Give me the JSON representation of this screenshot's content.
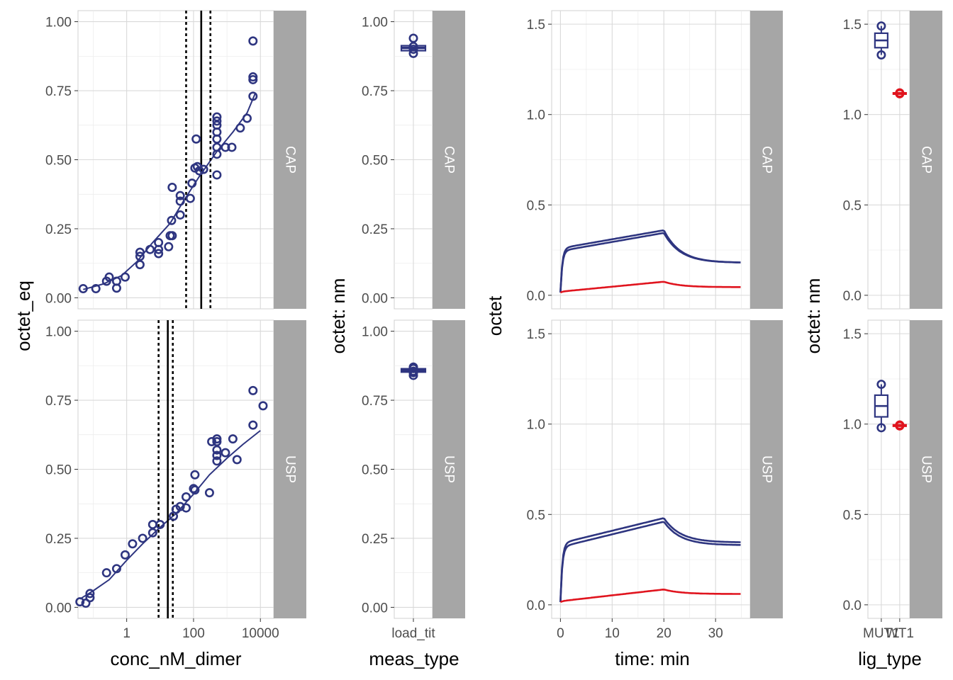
{
  "colors": {
    "series_main": "#2E3580",
    "series_secondary": "#E0141E",
    "strip_bg": "#A6A6A6",
    "grid_major": "#D9D9D9",
    "grid_minor": "#EBEBEB",
    "panel_border": "#D0D0D0",
    "reference_line": "#000000"
  },
  "figure": {
    "facet_rows": [
      "CAP",
      "USP"
    ]
  },
  "chart_data": [
    {
      "id": "titration",
      "type": "scatter",
      "xlabel": "conc_nM_dimer",
      "ylabel": "octet_eq",
      "x_scale": "log10",
      "xlim": [
        0.035,
        25000
      ],
      "ylim": [
        -0.04,
        1.04
      ],
      "x_ticks": [
        1,
        100,
        10000
      ],
      "x_tick_labels": [
        "1",
        "100",
        "10000"
      ],
      "y_ticks": [
        0,
        0.25,
        0.5,
        0.75,
        1
      ],
      "y_tick_labels": [
        "0.00",
        "0.25",
        "0.50",
        "0.75",
        "1.00"
      ],
      "grid": true,
      "facets": [
        {
          "strip": "CAP",
          "points": [
            [
              0.05,
              0.033
            ],
            [
              0.12,
              0.033
            ],
            [
              0.25,
              0.06
            ],
            [
              0.3,
              0.075
            ],
            [
              0.5,
              0.06
            ],
            [
              0.5,
              0.035
            ],
            [
              0.9,
              0.075
            ],
            [
              2.5,
              0.12
            ],
            [
              2.5,
              0.15
            ],
            [
              2.5,
              0.165
            ],
            [
              5,
              0.175
            ],
            [
              9,
              0.16
            ],
            [
              9,
              0.175
            ],
            [
              9,
              0.2
            ],
            [
              18,
              0.185
            ],
            [
              20,
              0.225
            ],
            [
              22,
              0.28
            ],
            [
              23,
              0.225
            ],
            [
              23,
              0.4
            ],
            [
              40,
              0.3
            ],
            [
              40,
              0.35
            ],
            [
              40,
              0.37
            ],
            [
              80,
              0.36
            ],
            [
              90,
              0.415
            ],
            [
              110,
              0.47
            ],
            [
              130,
              0.475
            ],
            [
              150,
              0.46
            ],
            [
              120,
              0.575
            ],
            [
              200,
              0.465
            ],
            [
              500,
              0.445
            ],
            [
              500,
              0.52
            ],
            [
              500,
              0.545
            ],
            [
              500,
              0.575
            ],
            [
              500,
              0.6
            ],
            [
              500,
              0.625
            ],
            [
              500,
              0.64
            ],
            [
              500,
              0.655
            ],
            [
              900,
              0.545
            ],
            [
              1400,
              0.545
            ],
            [
              2500,
              0.615
            ],
            [
              4000,
              0.65
            ],
            [
              6000,
              0.73
            ],
            [
              6000,
              0.79
            ],
            [
              6000,
              0.8
            ],
            [
              6000,
              0.93
            ]
          ],
          "fit_curve": [
            [
              0.05,
              0.03
            ],
            [
              0.2,
              0.05
            ],
            [
              0.7,
              0.08
            ],
            [
              2,
              0.13
            ],
            [
              6,
              0.2
            ],
            [
              20,
              0.27
            ],
            [
              50,
              0.35
            ],
            [
              150,
              0.44
            ],
            [
              500,
              0.53
            ],
            [
              1500,
              0.6
            ],
            [
              4000,
              0.67
            ],
            [
              7000,
              0.74
            ]
          ],
          "vlines": {
            "estimate": 170,
            "lower": 60,
            "upper": 320
          }
        },
        {
          "strip": "USP",
          "points": [
            [
              0.04,
              0.02
            ],
            [
              0.06,
              0.015
            ],
            [
              0.08,
              0.035
            ],
            [
              0.08,
              0.05
            ],
            [
              0.25,
              0.125
            ],
            [
              0.5,
              0.14
            ],
            [
              0.9,
              0.19
            ],
            [
              1.5,
              0.23
            ],
            [
              3,
              0.25
            ],
            [
              6,
              0.27
            ],
            [
              6,
              0.3
            ],
            [
              10,
              0.3
            ],
            [
              25,
              0.33
            ],
            [
              30,
              0.355
            ],
            [
              40,
              0.365
            ],
            [
              60,
              0.36
            ],
            [
              60,
              0.4
            ],
            [
              100,
              0.43
            ],
            [
              110,
              0.425
            ],
            [
              110,
              0.48
            ],
            [
              300,
              0.415
            ],
            [
              350,
              0.6
            ],
            [
              500,
              0.53
            ],
            [
              500,
              0.55
            ],
            [
              500,
              0.57
            ],
            [
              500,
              0.6
            ],
            [
              500,
              0.61
            ],
            [
              900,
              0.56
            ],
            [
              1500,
              0.61
            ],
            [
              2000,
              0.535
            ],
            [
              6000,
              0.785
            ],
            [
              6000,
              0.66
            ],
            [
              12000,
              0.73
            ]
          ],
          "fit_curve": [
            [
              0.04,
              0.03
            ],
            [
              0.1,
              0.06
            ],
            [
              0.3,
              0.1
            ],
            [
              1,
              0.17
            ],
            [
              3,
              0.23
            ],
            [
              10,
              0.29
            ],
            [
              30,
              0.34
            ],
            [
              100,
              0.41
            ],
            [
              300,
              0.48
            ],
            [
              1000,
              0.54
            ],
            [
              3000,
              0.59
            ],
            [
              10000,
              0.64
            ]
          ],
          "vlines": {
            "estimate": 17,
            "lower": 9,
            "upper": 24
          }
        }
      ]
    },
    {
      "id": "loading",
      "type": "box",
      "xlabel": "meas_type",
      "ylabel": "octet: nm",
      "categories": [
        "load_tit"
      ],
      "ylim": [
        -0.04,
        1.04
      ],
      "y_ticks": [
        0,
        0.25,
        0.5,
        0.75,
        1
      ],
      "y_tick_labels": [
        "0.00",
        "0.25",
        "0.50",
        "0.75",
        "1.00"
      ],
      "grid": true,
      "facets": [
        {
          "strip": "CAP",
          "points": [
            0.94,
            0.91,
            0.9,
            0.885
          ],
          "box": {
            "q1": 0.895,
            "median": 0.905,
            "q3": 0.913
          }
        },
        {
          "strip": "USP",
          "points": [
            0.87,
            0.865,
            0.855,
            0.85,
            0.84
          ],
          "box": {
            "q1": 0.852,
            "median": 0.858,
            "q3": 0.864
          }
        }
      ]
    },
    {
      "id": "kinetics",
      "type": "line",
      "xlabel": "time: min",
      "ylabel": "octet",
      "xlim": [
        -1.7,
        36.7
      ],
      "ylim": [
        -0.075,
        1.575
      ],
      "x_ticks": [
        0,
        10,
        20,
        30
      ],
      "x_tick_labels": [
        "0",
        "10",
        "20",
        "30"
      ],
      "y_ticks": [
        0,
        0.5,
        1,
        1.5
      ],
      "y_tick_labels": [
        "0.0",
        "0.5",
        "1.0",
        "1.5"
      ],
      "grid": true,
      "facets": [
        {
          "strip": "CAP",
          "series": [
            {
              "color_key": "series_main",
              "association_end": 0.36,
              "plateau_start": 0.26,
              "dissociation_end": 0.18
            },
            {
              "color_key": "series_main",
              "association_end": 0.345,
              "plateau_start": 0.245,
              "dissociation_end": 0.18
            },
            {
              "color_key": "series_secondary",
              "association_end": 0.075,
              "plateau_start": 0.02,
              "dissociation_end": 0.045
            }
          ]
        },
        {
          "strip": "USP",
          "series": [
            {
              "color_key": "series_main",
              "association_end": 0.48,
              "plateau_start": 0.34,
              "dissociation_end": 0.345
            },
            {
              "color_key": "series_main",
              "association_end": 0.46,
              "plateau_start": 0.32,
              "dissociation_end": 0.33
            },
            {
              "color_key": "series_secondary",
              "association_end": 0.085,
              "plateau_start": 0.02,
              "dissociation_end": 0.06
            }
          ]
        }
      ]
    },
    {
      "id": "ligand",
      "type": "box",
      "xlabel": "lig_type",
      "ylabel": "octet: nm",
      "categories": [
        "MUT1",
        "WT1"
      ],
      "ylim": [
        -0.075,
        1.575
      ],
      "y_ticks": [
        0,
        0.5,
        1,
        1.5
      ],
      "y_tick_labels": [
        "0.0",
        "0.5",
        "1.0",
        "1.5"
      ],
      "grid": true,
      "facets": [
        {
          "strip": "CAP",
          "groups": [
            {
              "category": "MUT1",
              "color_key": "series_main",
              "points": [
                1.49,
                1.33
              ],
              "box": {
                "q1": 1.37,
                "median": 1.41,
                "q3": 1.45
              }
            },
            {
              "category": "WT1",
              "color_key": "series_secondary",
              "points": [
                1.12,
                1.115
              ],
              "box": {
                "q1": 1.113,
                "median": 1.117,
                "q3": 1.12
              }
            }
          ]
        },
        {
          "strip": "USP",
          "groups": [
            {
              "category": "MUT1",
              "color_key": "series_main",
              "points": [
                1.22,
                0.98
              ],
              "box": {
                "q1": 1.04,
                "median": 1.1,
                "q3": 1.16
              }
            },
            {
              "category": "WT1",
              "color_key": "series_secondary",
              "points": [
                0.995,
                0.99
              ],
              "box": {
                "q1": 0.988,
                "median": 0.992,
                "q3": 0.996
              }
            }
          ]
        }
      ]
    }
  ]
}
